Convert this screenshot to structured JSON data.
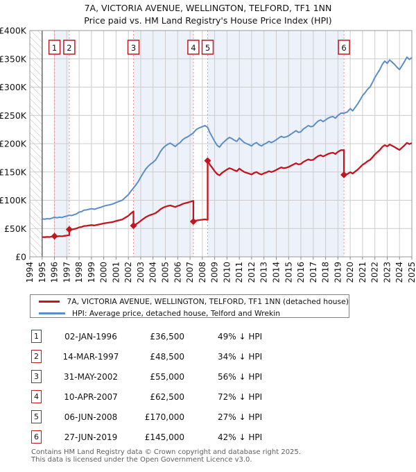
{
  "title": {
    "line1": "7A, VICTORIA AVENUE, WELLINGTON, TELFORD, TF1 1NN",
    "line2": "Price paid vs. HM Land Registry's House Price Index (HPI)"
  },
  "colors": {
    "price_line": "#c41420",
    "hpi_line": "#5b8dc8",
    "band_fill": "#edf1fa",
    "dashed_sale_line": "#f98b8b",
    "grid": "#cccccc",
    "plot_border": "#999999",
    "marker_box_border": "#c0181f",
    "hatch": "#bbbbbb",
    "data_start_line": "#555555"
  },
  "chart_data": {
    "type": "line",
    "title": "Price paid vs. HM Land Registry's House Price Index (HPI)",
    "x_axis": {
      "min": 1994,
      "max": 2025,
      "tick_labels": [
        "1994",
        "1995",
        "1996",
        "1997",
        "1998",
        "1999",
        "2000",
        "2001",
        "2002",
        "2003",
        "2004",
        "2005",
        "2006",
        "2007",
        "2008",
        "2009",
        "2010",
        "2011",
        "2012",
        "2013",
        "2014",
        "2015",
        "2016",
        "2017",
        "2018",
        "2019",
        "2020",
        "2021",
        "2022",
        "2023",
        "2024",
        "2025"
      ]
    },
    "y_axis": {
      "min": 0,
      "max": 400,
      "unit": "£K",
      "tick_step": 50,
      "tick_labels": [
        "£0",
        "£50K",
        "£100K",
        "£150K",
        "£200K",
        "£250K",
        "£300K",
        "£350K",
        "£400K"
      ]
    },
    "grid": true,
    "hatch_region_years": [
      1994,
      1995
    ],
    "series": [
      {
        "name": "7A, VICTORIA AVENUE, WELLINGTON, TELFORD, TF1 1NN (detached house)",
        "role": "price-paid",
        "color": "#c41420"
      },
      {
        "name": "HPI: Average price, detached house, Telford and Wrekin",
        "role": "hpi",
        "color": "#5b8dc8"
      }
    ],
    "hpi_points_year_value_k": [
      [
        1995.0,
        67
      ],
      [
        1995.2,
        66.5
      ],
      [
        1995.4,
        67.5
      ],
      [
        1995.6,
        67
      ],
      [
        1995.8,
        68.5
      ],
      [
        1996.0,
        70
      ],
      [
        1996.2,
        69
      ],
      [
        1996.4,
        70
      ],
      [
        1996.6,
        69.5
      ],
      [
        1996.8,
        71
      ],
      [
        1997.0,
        72
      ],
      [
        1997.2,
        73.5
      ],
      [
        1997.4,
        73
      ],
      [
        1997.6,
        74.5
      ],
      [
        1997.8,
        76
      ],
      [
        1998.0,
        79
      ],
      [
        1998.2,
        80
      ],
      [
        1998.4,
        82.5
      ],
      [
        1998.6,
        83
      ],
      [
        1998.8,
        84
      ],
      [
        1999.0,
        85
      ],
      [
        1999.25,
        84
      ],
      [
        1999.5,
        86
      ],
      [
        1999.75,
        87.5
      ],
      [
        2000.0,
        89.5
      ],
      [
        2000.25,
        91
      ],
      [
        2000.5,
        92
      ],
      [
        2000.75,
        93.5
      ],
      [
        2001.0,
        96
      ],
      [
        2001.25,
        98
      ],
      [
        2001.5,
        100
      ],
      [
        2001.75,
        105
      ],
      [
        2002.0,
        110
      ],
      [
        2002.2,
        116
      ],
      [
        2002.42,
        122
      ],
      [
        2002.6,
        127
      ],
      [
        2002.8,
        133
      ],
      [
        2003.0,
        141
      ],
      [
        2003.2,
        148
      ],
      [
        2003.4,
        155
      ],
      [
        2003.6,
        160
      ],
      [
        2003.8,
        164
      ],
      [
        2004.0,
        167
      ],
      [
        2004.2,
        171
      ],
      [
        2004.4,
        178
      ],
      [
        2004.6,
        186
      ],
      [
        2004.8,
        192
      ],
      [
        2005.0,
        196
      ],
      [
        2005.2,
        199
      ],
      [
        2005.4,
        201
      ],
      [
        2005.6,
        198
      ],
      [
        2005.8,
        195
      ],
      [
        2006.0,
        199
      ],
      [
        2006.2,
        202
      ],
      [
        2006.4,
        207
      ],
      [
        2006.6,
        210
      ],
      [
        2006.8,
        212
      ],
      [
        2007.0,
        215
      ],
      [
        2007.27,
        219
      ],
      [
        2007.5,
        225
      ],
      [
        2007.75,
        228
      ],
      [
        2008.0,
        230
      ],
      [
        2008.2,
        232
      ],
      [
        2008.43,
        229
      ],
      [
        2008.6,
        220
      ],
      [
        2008.8,
        212
      ],
      [
        2009.0,
        204
      ],
      [
        2009.2,
        197
      ],
      [
        2009.4,
        194
      ],
      [
        2009.6,
        200
      ],
      [
        2009.8,
        204
      ],
      [
        2010.0,
        208
      ],
      [
        2010.2,
        211
      ],
      [
        2010.4,
        209
      ],
      [
        2010.6,
        206
      ],
      [
        2010.8,
        204
      ],
      [
        2011.0,
        210
      ],
      [
        2011.2,
        206
      ],
      [
        2011.4,
        202
      ],
      [
        2011.6,
        200
      ],
      [
        2011.8,
        198
      ],
      [
        2012.0,
        196
      ],
      [
        2012.2,
        200
      ],
      [
        2012.4,
        202
      ],
      [
        2012.6,
        198
      ],
      [
        2012.8,
        196
      ],
      [
        2013.0,
        199
      ],
      [
        2013.2,
        201
      ],
      [
        2013.4,
        204
      ],
      [
        2013.6,
        202
      ],
      [
        2013.8,
        204
      ],
      [
        2014.0,
        207
      ],
      [
        2014.2,
        210
      ],
      [
        2014.4,
        213
      ],
      [
        2014.6,
        211
      ],
      [
        2014.8,
        212
      ],
      [
        2015.0,
        214
      ],
      [
        2015.2,
        217
      ],
      [
        2015.4,
        220
      ],
      [
        2015.6,
        223
      ],
      [
        2015.8,
        220
      ],
      [
        2016.0,
        221
      ],
      [
        2016.2,
        226
      ],
      [
        2016.4,
        229
      ],
      [
        2016.6,
        232
      ],
      [
        2016.8,
        230
      ],
      [
        2017.0,
        231
      ],
      [
        2017.2,
        236
      ],
      [
        2017.4,
        240
      ],
      [
        2017.6,
        242
      ],
      [
        2017.8,
        239
      ],
      [
        2018.0,
        242
      ],
      [
        2018.2,
        245
      ],
      [
        2018.4,
        247
      ],
      [
        2018.6,
        248
      ],
      [
        2018.8,
        245
      ],
      [
        2019.0,
        250
      ],
      [
        2019.25,
        254
      ],
      [
        2019.49,
        254
      ],
      [
        2019.75,
        256
      ],
      [
        2020.0,
        262
      ],
      [
        2020.2,
        258
      ],
      [
        2020.4,
        264
      ],
      [
        2020.6,
        270
      ],
      [
        2020.8,
        277
      ],
      [
        2021.0,
        285
      ],
      [
        2021.2,
        290
      ],
      [
        2021.4,
        296
      ],
      [
        2021.6,
        300
      ],
      [
        2021.8,
        308
      ],
      [
        2022.0,
        317
      ],
      [
        2022.2,
        324
      ],
      [
        2022.4,
        331
      ],
      [
        2022.6,
        340
      ],
      [
        2022.8,
        346
      ],
      [
        2023.0,
        342
      ],
      [
        2023.2,
        348
      ],
      [
        2023.4,
        344
      ],
      [
        2023.6,
        340
      ],
      [
        2023.8,
        335
      ],
      [
        2024.0,
        331
      ],
      [
        2024.2,
        338
      ],
      [
        2024.4,
        345
      ],
      [
        2024.6,
        353
      ],
      [
        2024.8,
        349
      ],
      [
        2025.0,
        352
      ]
    ],
    "sales": [
      {
        "n": 1,
        "year": 1996.003,
        "price_k": 36.5
      },
      {
        "n": 2,
        "year": 1997.2,
        "price_k": 48.5
      },
      {
        "n": 3,
        "year": 2002.41,
        "price_k": 55
      },
      {
        "n": 4,
        "year": 2007.27,
        "price_k": 62.5
      },
      {
        "n": 5,
        "year": 2008.43,
        "price_k": 170
      },
      {
        "n": 6,
        "year": 2019.49,
        "price_k": 145
      }
    ],
    "shaded_ownership_bands_sale_pairs": [
      [
        1,
        2
      ],
      [
        3,
        4
      ],
      [
        5,
        6
      ]
    ],
    "legend_position": "below"
  },
  "legend": [
    {
      "label": "7A, VICTORIA AVENUE, WELLINGTON, TELFORD, TF1 1NN (detached house)",
      "color": "#c41420"
    },
    {
      "label": "HPI: Average price, detached house, Telford and Wrekin",
      "color": "#5b8dc8"
    }
  ],
  "table": {
    "rows": [
      {
        "n": "1",
        "date": "02-JAN-1996",
        "price": "£36,500",
        "vs_hpi": "49% ↓ HPI"
      },
      {
        "n": "2",
        "date": "14-MAR-1997",
        "price": "£48,500",
        "vs_hpi": "34% ↓ HPI"
      },
      {
        "n": "3",
        "date": "31-MAY-2002",
        "price": "£55,000",
        "vs_hpi": "56% ↓ HPI"
      },
      {
        "n": "4",
        "date": "10-APR-2007",
        "price": "£62,500",
        "vs_hpi": "72% ↓ HPI"
      },
      {
        "n": "5",
        "date": "06-JUN-2008",
        "price": "£170,000",
        "vs_hpi": "27% ↓ HPI"
      },
      {
        "n": "6",
        "date": "27-JUN-2019",
        "price": "£145,000",
        "vs_hpi": "42% ↓ HPI"
      }
    ]
  },
  "footer": {
    "line1": "Contains HM Land Registry data © Crown copyright and database right 2025.",
    "line2": "This data is licensed under the Open Government Licence v3.0."
  }
}
